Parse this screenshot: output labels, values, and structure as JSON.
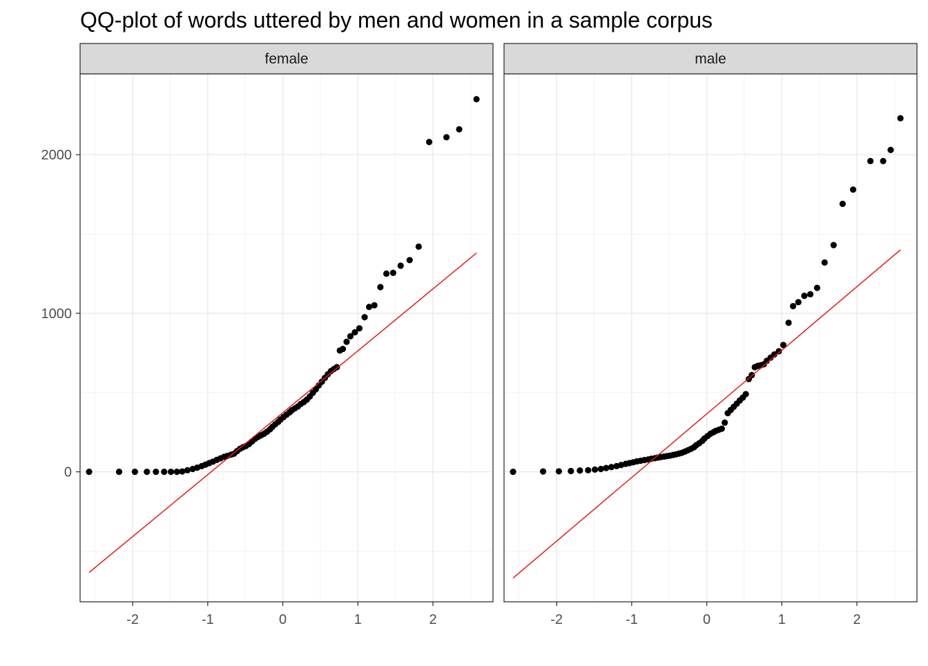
{
  "chart_data": {
    "type": "scatter",
    "title": "QQ-plot of words uttered by men and women in a sample corpus",
    "xlabel": "",
    "ylabel": "",
    "xlim": [
      -2.7,
      2.8
    ],
    "ylim": [
      -820,
      2510
    ],
    "x_ticks": [
      -2,
      -1,
      0,
      1,
      2
    ],
    "x_tick_labels": [
      "-2",
      "-1",
      "0",
      "1",
      "2"
    ],
    "y_ticks": [
      0,
      1000,
      2000
    ],
    "y_tick_labels": [
      "0",
      "1000",
      "2000"
    ],
    "grid": true,
    "colors": {
      "points": "#000000",
      "reference_line": "#e41a1c",
      "strip_fill": "#d9d9d9",
      "panel_border": "#333333",
      "grid": "#ebebeb"
    },
    "panels": [
      {
        "label": "female",
        "reference_line": {
          "x": [
            -2.58,
            2.58
          ],
          "y": [
            -635,
            1380
          ]
        },
        "points": [
          [
            -2.58,
            0
          ],
          [
            -2.18,
            0
          ],
          [
            -1.97,
            0
          ],
          [
            -1.81,
            0
          ],
          [
            -1.69,
            0
          ],
          [
            -1.58,
            0
          ],
          [
            -1.49,
            0
          ],
          [
            -1.41,
            0
          ],
          [
            -1.34,
            2
          ],
          [
            -1.27,
            10
          ],
          [
            -1.2,
            18
          ],
          [
            -1.14,
            26
          ],
          [
            -1.08,
            36
          ],
          [
            -1.03,
            45
          ],
          [
            -0.98,
            55
          ],
          [
            -0.93,
            64
          ],
          [
            -0.88,
            75
          ],
          [
            -0.83,
            85
          ],
          [
            -0.78,
            95
          ],
          [
            -0.74,
            100
          ],
          [
            -0.69,
            108
          ],
          [
            -0.65,
            114
          ],
          [
            -0.61,
            130
          ],
          [
            -0.57,
            145
          ],
          [
            -0.53,
            155
          ],
          [
            -0.49,
            163
          ],
          [
            -0.45,
            175
          ],
          [
            -0.41,
            192
          ],
          [
            -0.37,
            208
          ],
          [
            -0.33,
            220
          ],
          [
            -0.29,
            230
          ],
          [
            -0.25,
            240
          ],
          [
            -0.21,
            253
          ],
          [
            -0.17,
            268
          ],
          [
            -0.14,
            283
          ],
          [
            -0.1,
            300
          ],
          [
            -0.06,
            315
          ],
          [
            -0.03,
            330
          ],
          [
            0.01,
            345
          ],
          [
            0.05,
            360
          ],
          [
            0.09,
            375
          ],
          [
            0.12,
            388
          ],
          [
            0.16,
            400
          ],
          [
            0.2,
            412
          ],
          [
            0.24,
            428
          ],
          [
            0.28,
            440
          ],
          [
            0.32,
            455
          ],
          [
            0.36,
            475
          ],
          [
            0.4,
            498
          ],
          [
            0.44,
            520
          ],
          [
            0.48,
            545
          ],
          [
            0.52,
            568
          ],
          [
            0.56,
            592
          ],
          [
            0.6,
            615
          ],
          [
            0.64,
            635
          ],
          [
            0.68,
            648
          ],
          [
            0.72,
            660
          ],
          [
            0.76,
            765
          ],
          [
            0.8,
            775
          ],
          [
            0.85,
            820
          ],
          [
            0.9,
            855
          ],
          [
            0.96,
            880
          ],
          [
            1.02,
            905
          ],
          [
            1.09,
            975
          ],
          [
            1.15,
            1040
          ],
          [
            1.22,
            1050
          ],
          [
            1.3,
            1165
          ],
          [
            1.38,
            1250
          ],
          [
            1.47,
            1255
          ],
          [
            1.57,
            1300
          ],
          [
            1.69,
            1335
          ],
          [
            1.81,
            1420
          ],
          [
            1.95,
            2080
          ],
          [
            2.18,
            2110
          ],
          [
            2.35,
            2160
          ],
          [
            2.58,
            2350
          ]
        ]
      },
      {
        "label": "male",
        "reference_line": {
          "x": [
            -2.58,
            2.58
          ],
          "y": [
            -670,
            1400
          ]
        },
        "points": [
          [
            -2.58,
            0
          ],
          [
            -2.18,
            2
          ],
          [
            -1.97,
            3
          ],
          [
            -1.81,
            5
          ],
          [
            -1.69,
            8
          ],
          [
            -1.58,
            10
          ],
          [
            -1.49,
            14
          ],
          [
            -1.41,
            18
          ],
          [
            -1.34,
            24
          ],
          [
            -1.27,
            30
          ],
          [
            -1.2,
            36
          ],
          [
            -1.14,
            43
          ],
          [
            -1.08,
            50
          ],
          [
            -1.03,
            55
          ],
          [
            -0.98,
            60
          ],
          [
            -0.93,
            66
          ],
          [
            -0.88,
            70
          ],
          [
            -0.83,
            74
          ],
          [
            -0.78,
            78
          ],
          [
            -0.74,
            82
          ],
          [
            -0.69,
            86
          ],
          [
            -0.65,
            90
          ],
          [
            -0.61,
            93
          ],
          [
            -0.57,
            96
          ],
          [
            -0.53,
            99
          ],
          [
            -0.49,
            102
          ],
          [
            -0.45,
            106
          ],
          [
            -0.41,
            110
          ],
          [
            -0.37,
            115
          ],
          [
            -0.33,
            120
          ],
          [
            -0.29,
            128
          ],
          [
            -0.25,
            136
          ],
          [
            -0.21,
            145
          ],
          [
            -0.17,
            155
          ],
          [
            -0.14,
            168
          ],
          [
            -0.1,
            180
          ],
          [
            -0.06,
            195
          ],
          [
            -0.03,
            210
          ],
          [
            0.01,
            225
          ],
          [
            0.05,
            240
          ],
          [
            0.09,
            250
          ],
          [
            0.12,
            258
          ],
          [
            0.16,
            265
          ],
          [
            0.2,
            272
          ],
          [
            0.24,
            310
          ],
          [
            0.28,
            370
          ],
          [
            0.32,
            390
          ],
          [
            0.36,
            410
          ],
          [
            0.4,
            430
          ],
          [
            0.44,
            450
          ],
          [
            0.48,
            468
          ],
          [
            0.52,
            490
          ],
          [
            0.56,
            585
          ],
          [
            0.6,
            610
          ],
          [
            0.64,
            660
          ],
          [
            0.68,
            668
          ],
          [
            0.72,
            672
          ],
          [
            0.76,
            678
          ],
          [
            0.8,
            700
          ],
          [
            0.85,
            720
          ],
          [
            0.9,
            740
          ],
          [
            0.96,
            760
          ],
          [
            1.02,
            800
          ],
          [
            1.09,
            940
          ],
          [
            1.15,
            1045
          ],
          [
            1.22,
            1070
          ],
          [
            1.3,
            1110
          ],
          [
            1.38,
            1120
          ],
          [
            1.47,
            1160
          ],
          [
            1.57,
            1320
          ],
          [
            1.69,
            1430
          ],
          [
            1.81,
            1690
          ],
          [
            1.95,
            1780
          ],
          [
            2.18,
            1960
          ],
          [
            2.35,
            1960
          ],
          [
            2.45,
            2030
          ],
          [
            2.58,
            2230
          ]
        ]
      }
    ]
  }
}
